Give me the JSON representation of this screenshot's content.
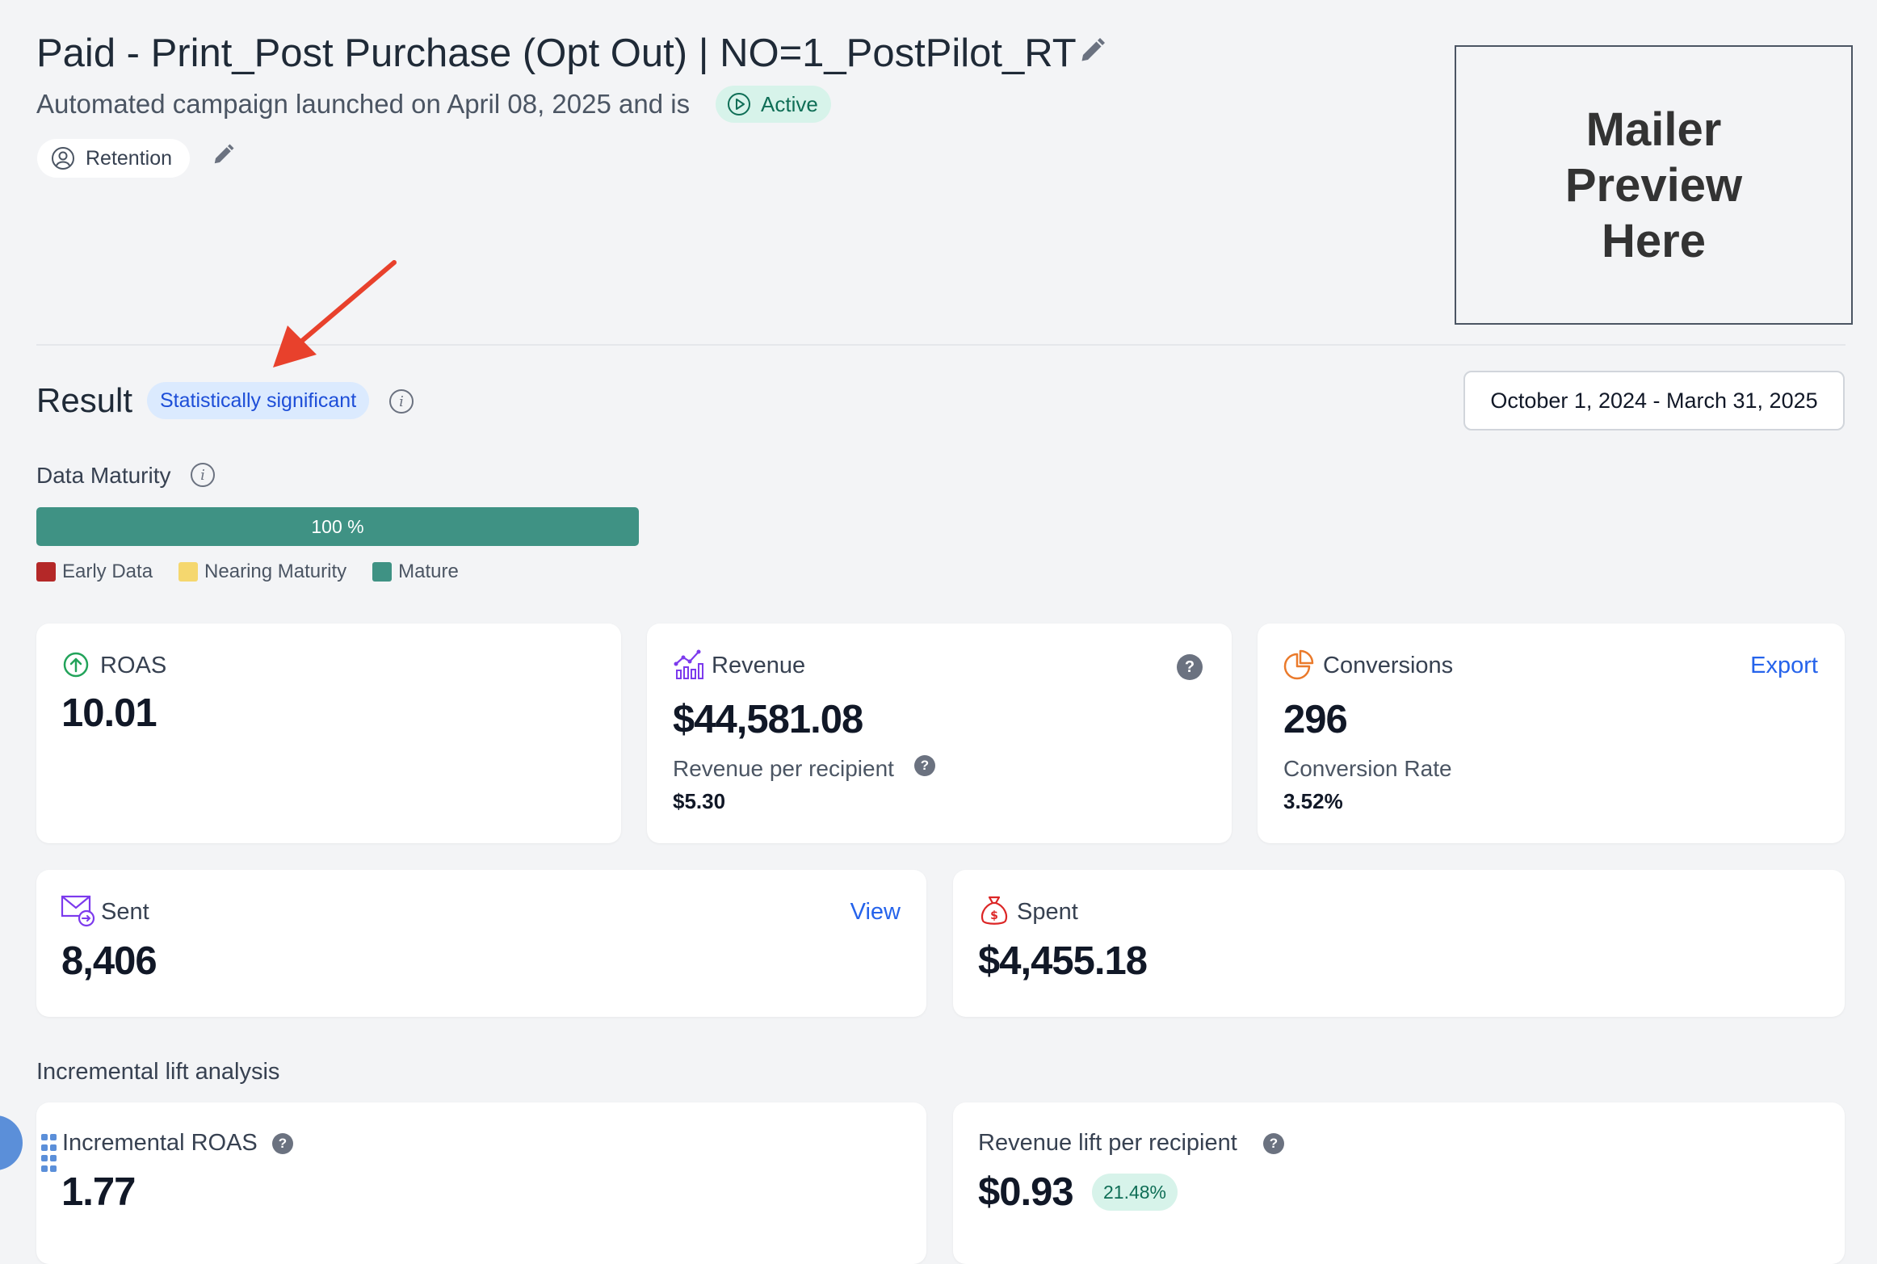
{
  "header": {
    "title": "Paid - Print_Post Purchase (Opt Out) | NO=1_PostPilot_RT",
    "subtitle": "Automated campaign launched on April 08, 2025 and is",
    "status": "Active",
    "tag": "Retention"
  },
  "mailer_preview": "Mailer\nPreview\nHere",
  "result": {
    "title": "Result",
    "significance": "Statistically significant",
    "date_range": "October 1, 2024 - March 31, 2025"
  },
  "maturity": {
    "label": "Data Maturity",
    "progress_text": "100 %",
    "progress_value": 1.0,
    "legend": [
      {
        "label": "Early Data",
        "color": "#b42828"
      },
      {
        "label": "Nearing Maturity",
        "color": "#f5d76e"
      },
      {
        "label": "Mature",
        "color": "#3f9284"
      }
    ]
  },
  "cards": {
    "roas": {
      "label": "ROAS",
      "value": "10.01",
      "icon": "arrow-up-circle-icon"
    },
    "revenue": {
      "label": "Revenue",
      "value": "$44,581.08",
      "sub_label": "Revenue per recipient",
      "sub_value": "$5.30",
      "icon": "chart-icon"
    },
    "conversions": {
      "label": "Conversions",
      "value": "296",
      "sub_label": "Conversion Rate",
      "sub_value": "3.52%",
      "action": "Export",
      "icon": "pie-chart-icon"
    },
    "sent": {
      "label": "Sent",
      "value": "8,406",
      "action": "View",
      "icon": "mail-send-icon"
    },
    "spent": {
      "label": "Spent",
      "value": "$4,455.18",
      "icon": "money-bag-icon"
    }
  },
  "incremental": {
    "heading": "Incremental lift analysis",
    "iroas": {
      "label": "Incremental ROAS",
      "value": "1.77"
    },
    "rev_lift": {
      "label": "Revenue lift per recipient",
      "value": "$0.93",
      "badge": "21.48%"
    }
  },
  "colors": {
    "accent": "#2563eb",
    "mature": "#3f9284",
    "annotation_arrow": "#e8412c"
  }
}
